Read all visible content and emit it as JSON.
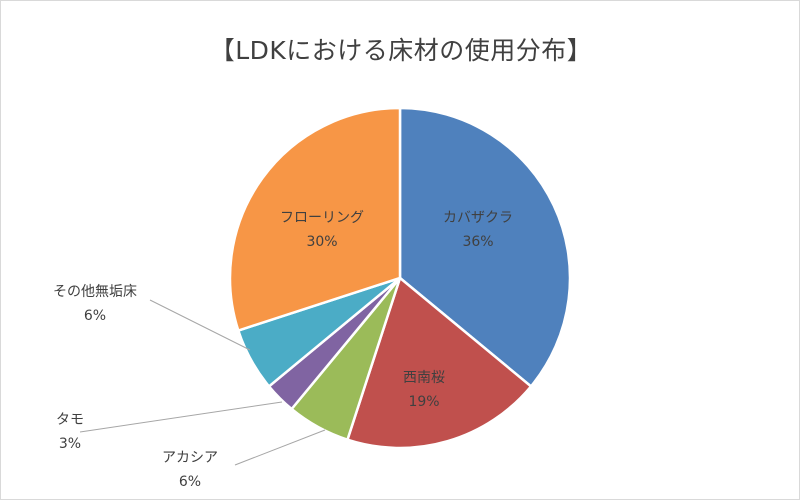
{
  "chart_data": {
    "type": "pie",
    "title": "【LDKにおける床材の使用分布】",
    "slices": [
      {
        "label": "カバザクラ",
        "value": 36,
        "pct_label": "36%",
        "color": "#4f81bd"
      },
      {
        "label": "西南桜",
        "value": 19,
        "pct_label": "19%",
        "color": "#c0504d"
      },
      {
        "label": "アカシア",
        "value": 6,
        "pct_label": "6%",
        "color": "#9bbb59"
      },
      {
        "label": "タモ",
        "value": 3,
        "pct_label": "3%",
        "color": "#8064a2"
      },
      {
        "label": "その他無垢床",
        "value": 6,
        "pct_label": "6%",
        "color": "#4bacc6"
      },
      {
        "label": "フローリング",
        "value": 30,
        "pct_label": "30%",
        "color": "#f79646"
      }
    ],
    "start_angle_deg": 0,
    "direction": "clockwise",
    "legend": "none"
  }
}
